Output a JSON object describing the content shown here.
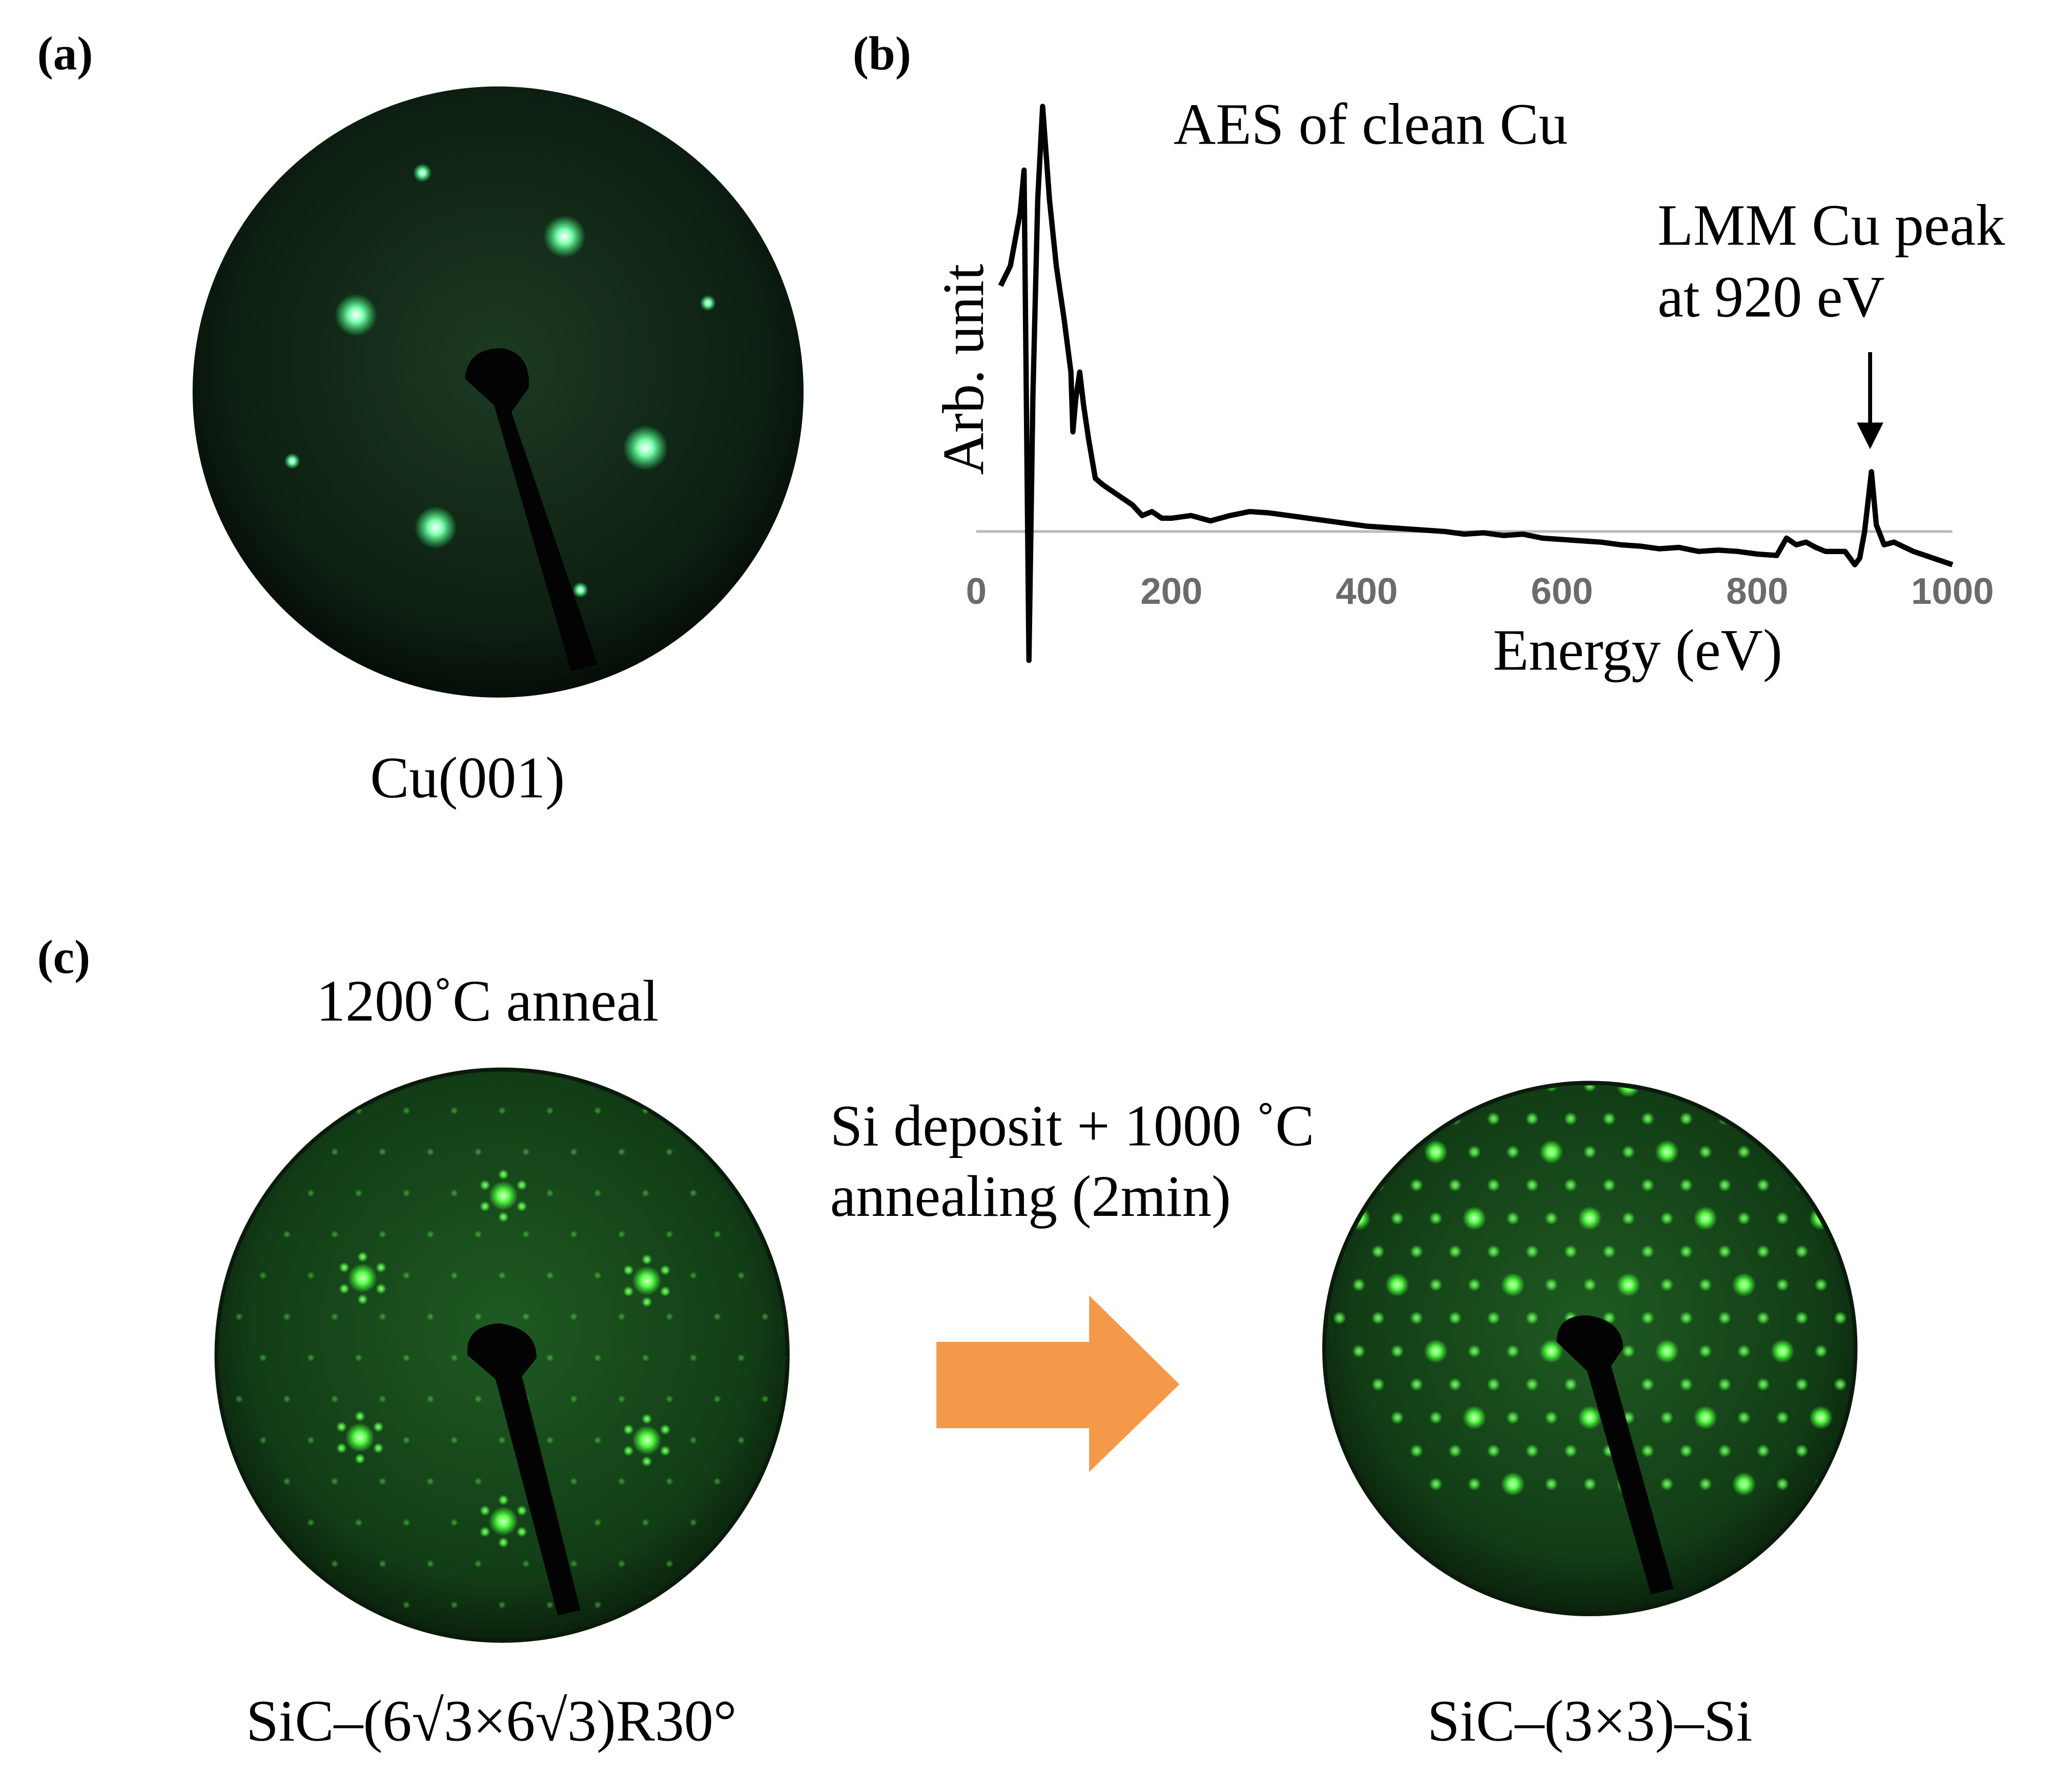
{
  "panels": {
    "a": {
      "label": "(a)",
      "caption": "Cu(001)"
    },
    "b": {
      "label": "(b)"
    },
    "c": {
      "label": "(c)",
      "left_title": "1200˚C  anneal",
      "arrow_text": [
        "Si deposit + 1000 ˚C",
        "annealing (2min)"
      ],
      "left_caption": "SiC–(6√3×6√3)R30°",
      "right_caption": "SiC–(3×3)–Si"
    }
  },
  "chart_data": {
    "type": "line",
    "title": "AES of clean Cu",
    "x_label": "Energy (eV)",
    "y_label": "Arb. unit",
    "annotation": [
      "LMM Cu peak",
      "at 920 eV"
    ],
    "annotation_x": 917,
    "x": [
      25,
      35,
      45,
      49,
      54,
      58,
      63,
      68,
      75,
      82,
      90,
      97,
      99,
      102,
      106,
      110,
      115,
      122,
      130,
      140,
      150,
      160,
      170,
      180,
      190,
      200,
      220,
      240,
      260,
      280,
      300,
      320,
      340,
      360,
      380,
      400,
      420,
      440,
      460,
      480,
      500,
      520,
      540,
      560,
      580,
      600,
      620,
      640,
      660,
      680,
      700,
      720,
      740,
      760,
      780,
      800,
      820,
      830,
      840,
      850,
      860,
      870,
      880,
      890,
      900,
      905,
      910,
      917,
      922,
      930,
      940,
      960,
      980,
      1000
    ],
    "series": [
      {
        "color": "#000000",
        "values": [
          185,
          200,
          240,
          272,
          -97,
          100,
          250,
          320,
          250,
          200,
          160,
          120,
          75,
          100,
          120,
          95,
          70,
          40,
          35,
          30,
          25,
          20,
          12,
          15,
          10,
          10,
          12,
          8,
          12,
          15,
          14,
          12,
          10,
          8,
          6,
          4,
          3,
          2,
          1,
          0,
          -2,
          -1,
          -3,
          -2,
          -5,
          -6,
          -7,
          -8,
          -10,
          -11,
          -13,
          -12,
          -15,
          -14,
          -15,
          -17,
          -18,
          -5,
          -10,
          -8,
          -12,
          -15,
          -15,
          -15,
          -25,
          -20,
          0,
          45,
          5,
          -10,
          -8,
          -15,
          -20,
          -25
        ]
      }
    ],
    "xlim": [
      0,
      1000
    ],
    "xticks": [
      0,
      200,
      400,
      600,
      800,
      1000
    ],
    "ylim": [
      -100,
      330
    ]
  }
}
